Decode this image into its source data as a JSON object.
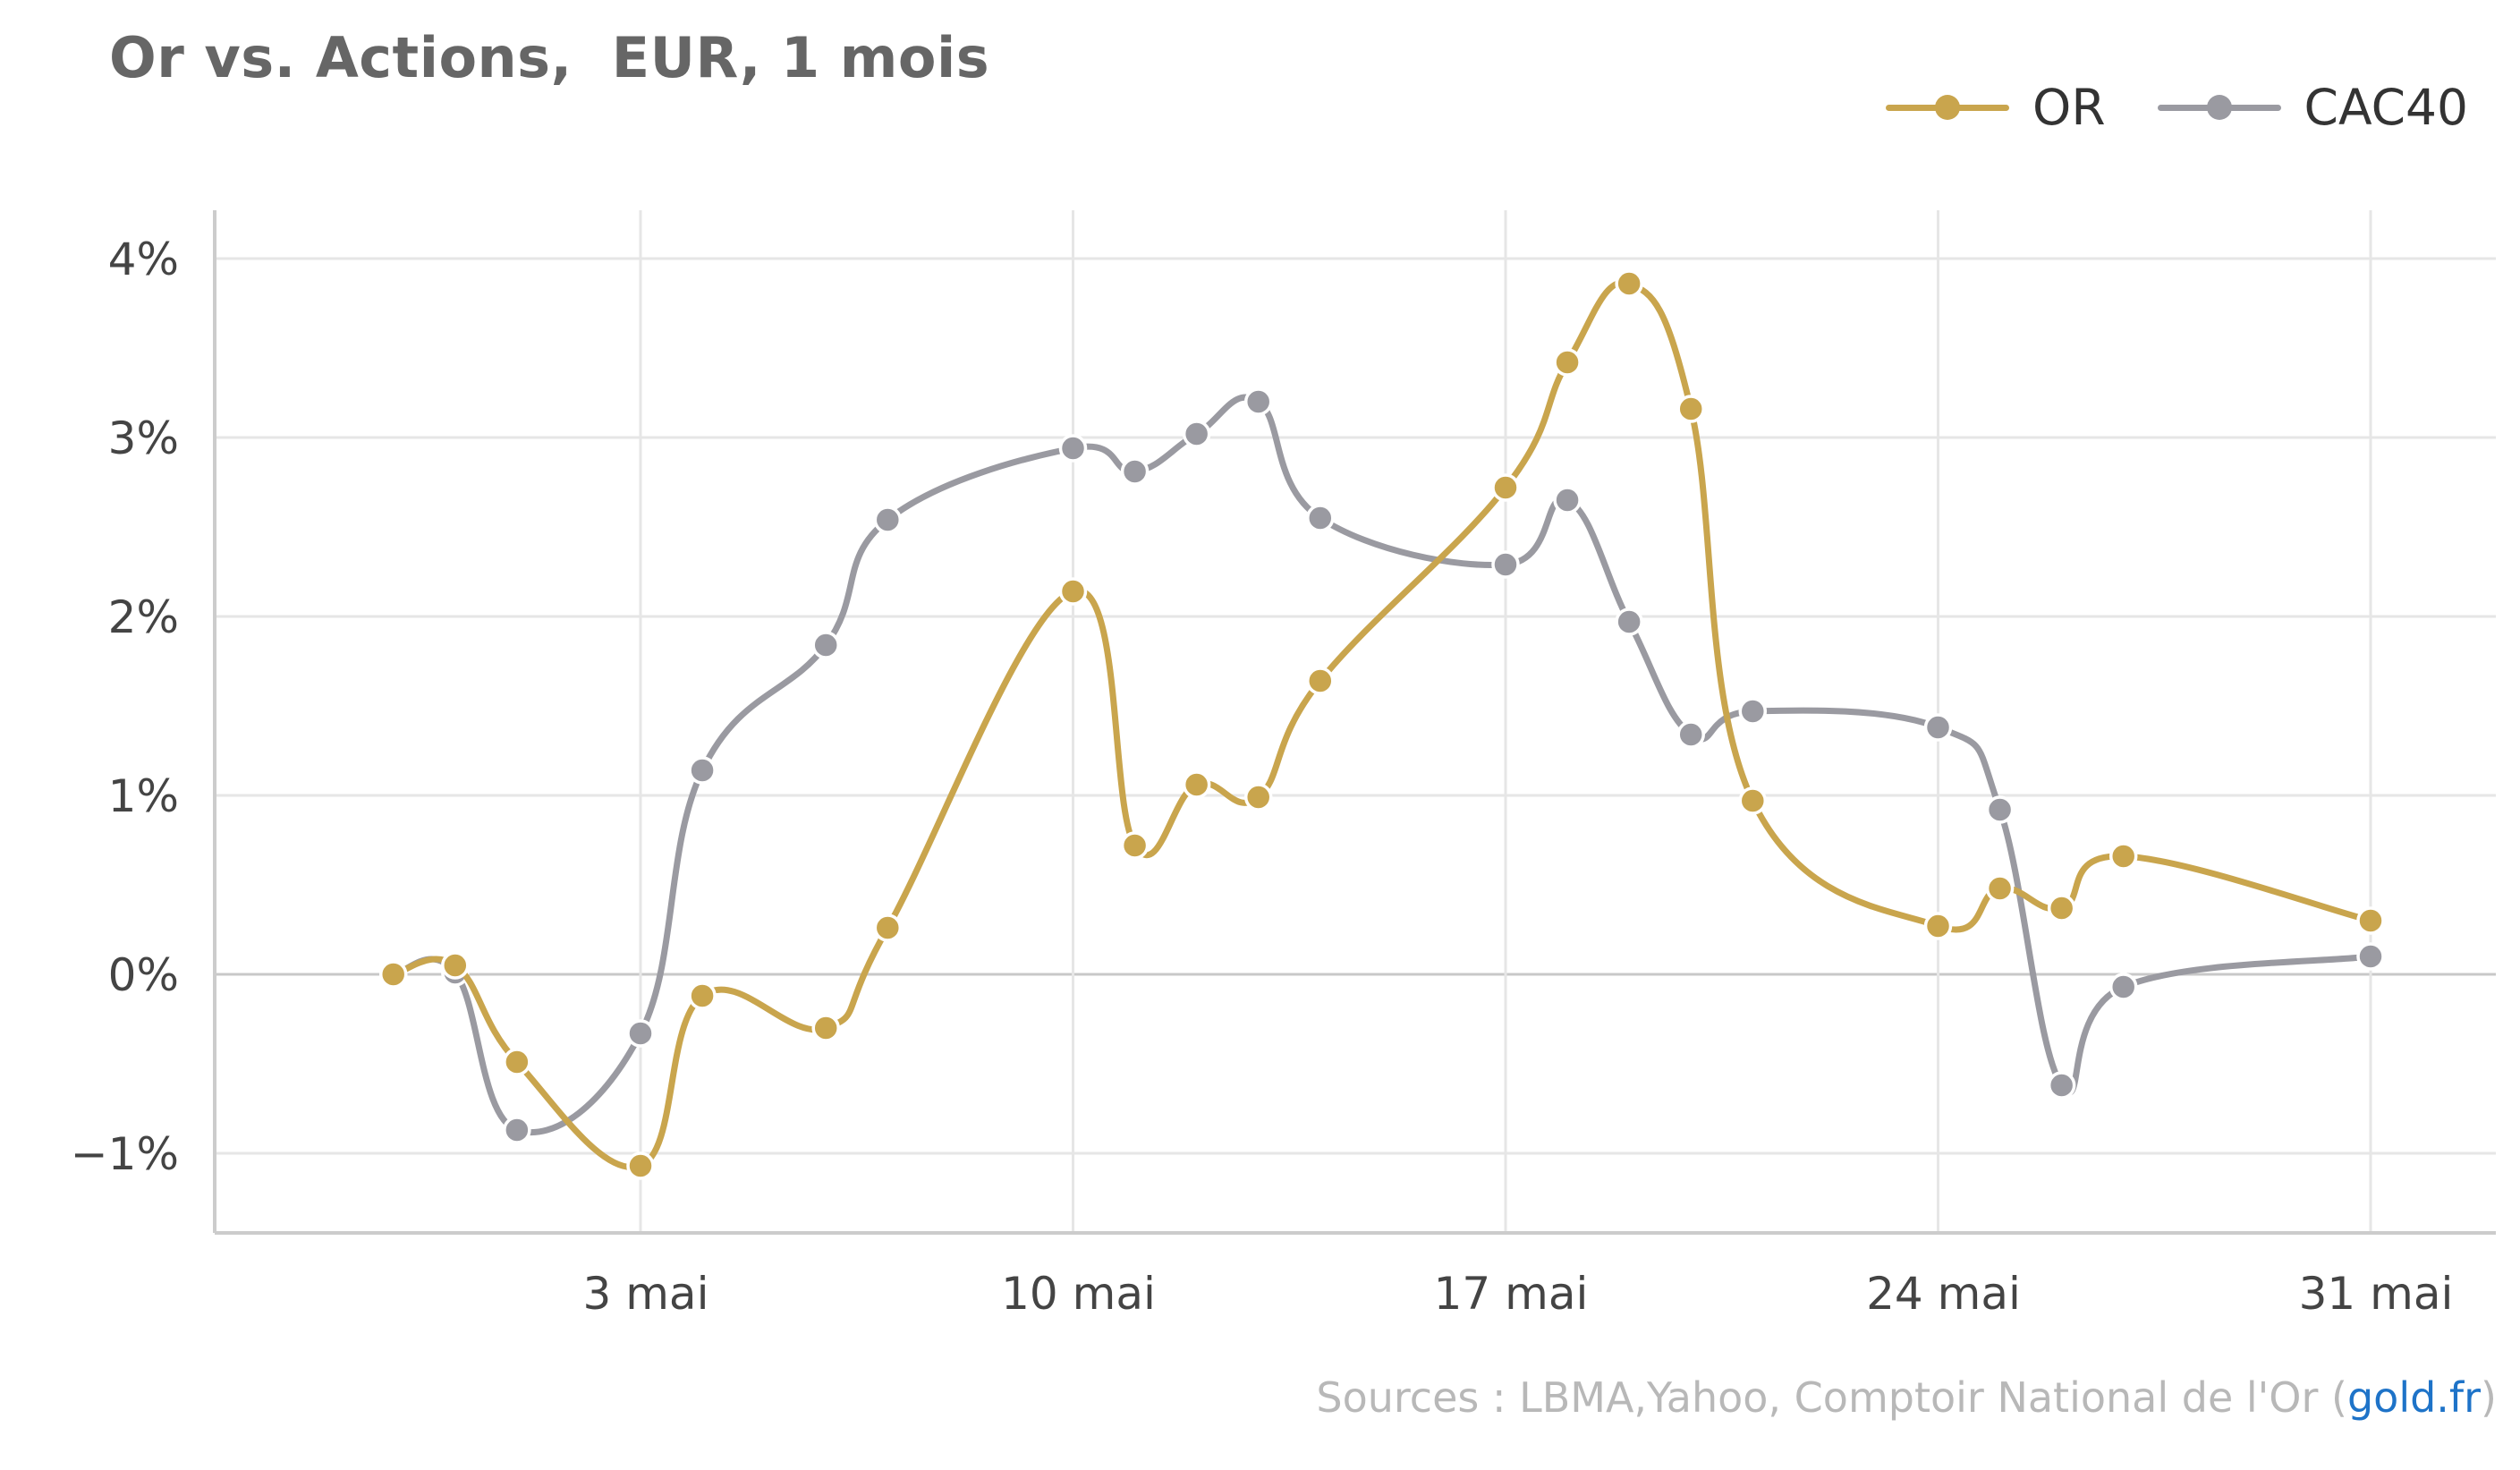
{
  "title": "Or vs. Actions,  EUR, 1 mois",
  "source": {
    "prefix": "Sources : LBMA,Yahoo, Comptoir National de l'Or (",
    "link": "gold.fr",
    "suffix": ")"
  },
  "colors": {
    "or": "#c9a54d",
    "cac40": "#9a9aa1",
    "grid": "#e6e6e6",
    "axis": "#cccccc",
    "zero_line": "#c8c8c8",
    "text": "#444444",
    "source_link": "#1e73c8"
  },
  "chart_data": {
    "type": "line",
    "title": "Or vs. Actions,  EUR, 1 mois",
    "x": [
      "2021-04-30",
      "2021-05-01",
      "2021-05-02",
      "2021-05-03",
      "2021-05-04",
      "2021-05-05",
      "2021-05-06",
      "2021-05-07",
      "2021-05-08",
      "2021-05-09",
      "2021-05-10",
      "2021-05-11",
      "2021-05-12",
      "2021-05-13",
      "2021-05-14",
      "2021-05-15",
      "2021-05-16",
      "2021-05-17",
      "2021-05-18",
      "2021-05-19",
      "2021-05-20",
      "2021-05-21",
      "2021-05-22",
      "2021-05-23",
      "2021-05-24",
      "2021-05-25",
      "2021-05-26",
      "2021-05-27",
      "2021-05-28",
      "2021-05-29",
      "2021-05-30",
      "2021-05-31"
    ],
    "series": [
      {
        "name": "OR",
        "color": "#c9a54d",
        "points": [
          [
            "2021-04-29",
            0.0
          ],
          [
            "2021-04-30",
            0.05
          ],
          [
            "2021-05-01",
            -0.49
          ],
          [
            "2021-05-03",
            -1.07
          ],
          [
            "2021-05-04",
            -0.12
          ],
          [
            "2021-05-06",
            -0.3
          ],
          [
            "2021-05-07",
            0.26
          ],
          [
            "2021-05-10",
            2.14
          ],
          [
            "2021-05-11",
            0.72
          ],
          [
            "2021-05-12",
            1.06
          ],
          [
            "2021-05-13",
            0.99
          ],
          [
            "2021-05-14",
            1.64
          ],
          [
            "2021-05-17",
            2.72
          ],
          [
            "2021-05-18",
            3.42
          ],
          [
            "2021-05-19",
            3.86
          ],
          [
            "2021-05-20",
            3.16
          ],
          [
            "2021-05-21",
            0.97
          ],
          [
            "2021-05-24",
            0.27
          ],
          [
            "2021-05-25",
            0.48
          ],
          [
            "2021-05-26",
            0.37
          ],
          [
            "2021-05-27",
            0.66
          ],
          [
            "2021-05-31",
            0.3
          ]
        ]
      },
      {
        "name": "CAC40",
        "color": "#9a9aa1",
        "points": [
          [
            "2021-04-29",
            0.0
          ],
          [
            "2021-04-30",
            0.01
          ],
          [
            "2021-05-01",
            -0.87
          ],
          [
            "2021-05-03",
            -0.33
          ],
          [
            "2021-05-04",
            1.14
          ],
          [
            "2021-05-06",
            1.84
          ],
          [
            "2021-05-07",
            2.54
          ],
          [
            "2021-05-10",
            2.94
          ],
          [
            "2021-05-11",
            2.81
          ],
          [
            "2021-05-12",
            3.02
          ],
          [
            "2021-05-13",
            3.2
          ],
          [
            "2021-05-14",
            2.55
          ],
          [
            "2021-05-17",
            2.29
          ],
          [
            "2021-05-18",
            2.65
          ],
          [
            "2021-05-19",
            1.97
          ],
          [
            "2021-05-20",
            1.34
          ],
          [
            "2021-05-21",
            1.47
          ],
          [
            "2021-05-24",
            1.38
          ],
          [
            "2021-05-25",
            0.92
          ],
          [
            "2021-05-26",
            -0.62
          ],
          [
            "2021-05-27",
            -0.07
          ],
          [
            "2021-05-31",
            0.1
          ]
        ]
      }
    ],
    "x_ticks": [
      {
        "date": "2021-05-03",
        "label": "3 mai"
      },
      {
        "date": "2021-05-10",
        "label": "10 mai"
      },
      {
        "date": "2021-05-17",
        "label": "17 mai"
      },
      {
        "date": "2021-05-24",
        "label": "24 mai"
      },
      {
        "date": "2021-05-31",
        "label": "31 mai"
      }
    ],
    "y_ticks": [
      {
        "value": 4,
        "label": "4%"
      },
      {
        "value": 3,
        "label": "3%"
      },
      {
        "value": 2,
        "label": "2%"
      },
      {
        "value": 1,
        "label": "1%"
      },
      {
        "value": 0,
        "label": "0%"
      },
      {
        "value": -1,
        "label": "−1%"
      }
    ],
    "ylim": [
      -1.45,
      4.3
    ],
    "xlabel": "",
    "ylabel": "",
    "grid": true,
    "legend": "top-right"
  }
}
